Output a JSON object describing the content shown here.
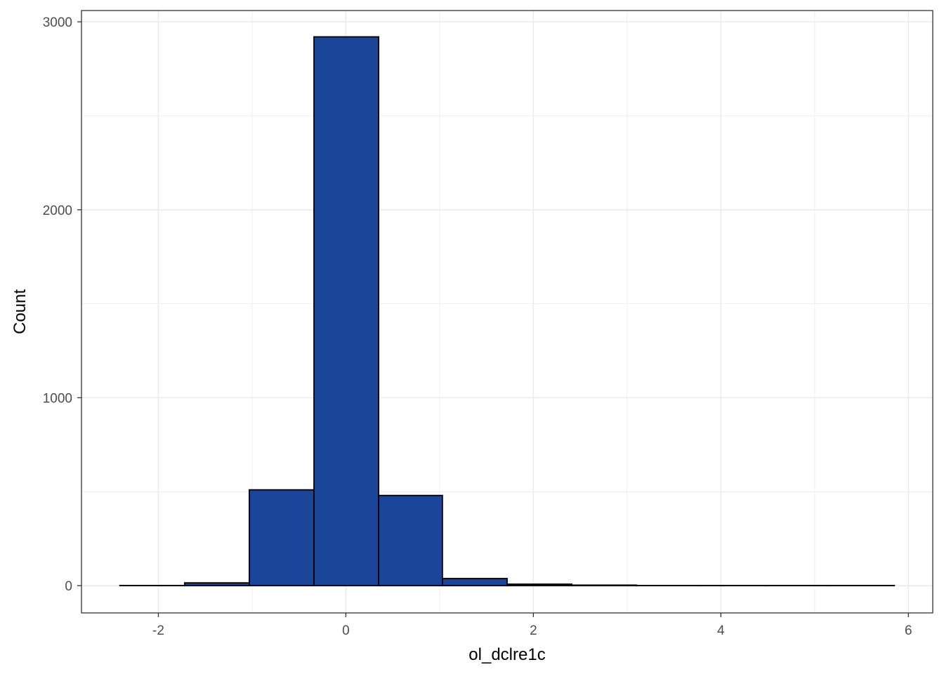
{
  "chart_data": {
    "type": "bar",
    "subtype": "histogram",
    "title": "",
    "xlabel": "ol_dclre1c",
    "ylabel": "Count",
    "bins": [
      {
        "x0": -2.41,
        "x1": -1.72,
        "count": 1
      },
      {
        "x0": -1.72,
        "x1": -1.03,
        "count": 15
      },
      {
        "x0": -1.03,
        "x1": -0.34,
        "count": 510
      },
      {
        "x0": -0.34,
        "x1": 0.35,
        "count": 2920
      },
      {
        "x0": 0.35,
        "x1": 1.03,
        "count": 480
      },
      {
        "x0": 1.03,
        "x1": 1.72,
        "count": 38
      },
      {
        "x0": 1.72,
        "x1": 2.41,
        "count": 8
      },
      {
        "x0": 2.41,
        "x1": 3.1,
        "count": 3
      },
      {
        "x0": 3.1,
        "x1": 3.78,
        "count": 1
      },
      {
        "x0": 3.78,
        "x1": 4.47,
        "count": 1
      },
      {
        "x0": 4.47,
        "x1": 5.16,
        "count": 1
      },
      {
        "x0": 5.16,
        "x1": 5.85,
        "count": 1
      }
    ],
    "xlim": [
      -2.82,
      6.26
    ],
    "ylim": [
      -145,
      3060
    ],
    "x_ticks": [
      -2,
      0,
      2,
      4,
      6
    ],
    "x_tick_labels": [
      "-2",
      "0",
      "2",
      "4",
      "6"
    ],
    "x_minor_ticks": [
      -1,
      1,
      3,
      5
    ],
    "y_ticks": [
      0,
      1000,
      2000,
      3000
    ],
    "y_tick_labels": [
      "0",
      "1000",
      "2000",
      "3000"
    ],
    "y_minor_ticks": [
      500,
      1500,
      2500
    ],
    "grid": true,
    "legend": "none",
    "bar_fill": "#1a4599",
    "bar_stroke": "#000000",
    "grid_color": "#ebebeb",
    "panel_border": "#333333"
  }
}
